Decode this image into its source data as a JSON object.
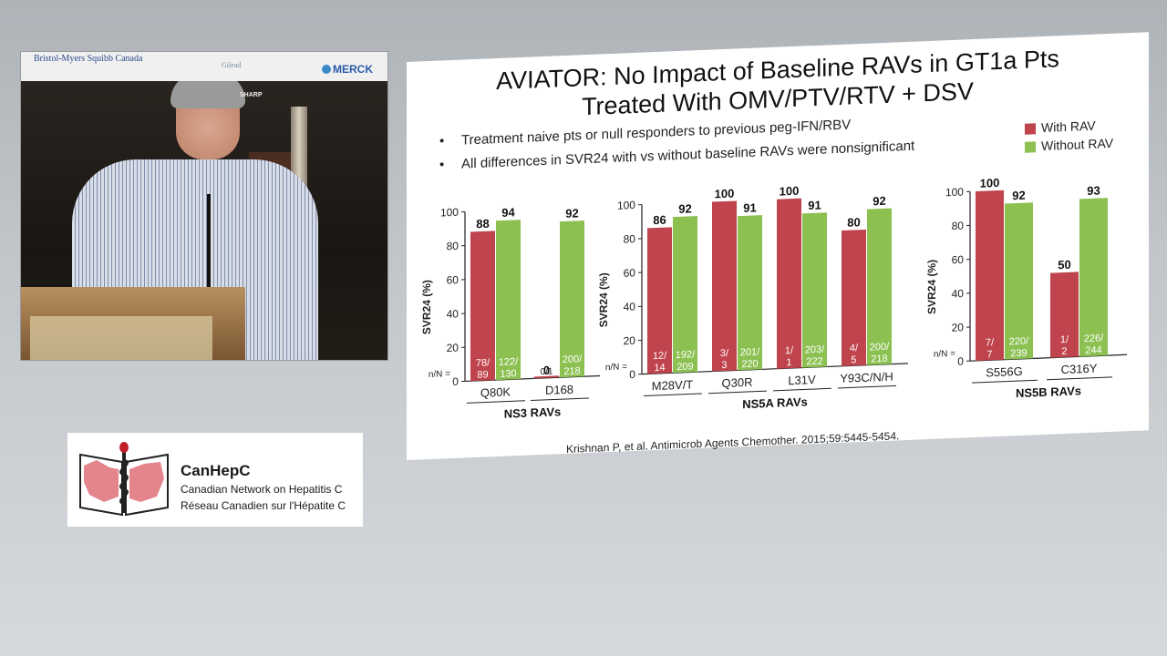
{
  "video": {
    "sponsors": [
      "Bristol-Myers Squibb Canada",
      "Gilead",
      "MERCK",
      "SHARP"
    ]
  },
  "logo": {
    "title": "CanHepC",
    "line1": "Canadian Network on Hepatitis C",
    "line2": "Réseau Canadien sur l'Hépatite C"
  },
  "slide": {
    "title_line1": "AVIATOR: No Impact of Baseline RAVs in GT1a Pts",
    "title_line2": "Treated With OMV/PTV/RTV + DSV",
    "bullets": [
      "Treatment naive pts or null responders to previous peg-IFN/RBV",
      "All differences in SVR24 with vs without baseline RAVs were nonsignificant"
    ],
    "legend": [
      {
        "label": "With RAV",
        "color": "#c0444d"
      },
      {
        "label": "Without RAV",
        "color": "#8cc152"
      }
    ],
    "citation": "Krishnan P, et al. Antimicrob Agents Chemother. 2015;59:5445-5454."
  },
  "chart_data": [
    {
      "type": "bar",
      "ylabel": "SVR24 (%)",
      "xlabel": "NS3 RAVs",
      "ylim": [
        0,
        100
      ],
      "yticks": [
        0,
        20,
        40,
        60,
        80,
        100
      ],
      "nlabel": "n/N =",
      "categories": [
        "Q80K",
        "D168"
      ],
      "series": [
        {
          "name": "With RAV",
          "color": "#c0444d",
          "values": [
            88,
            0
          ],
          "labels": [
            "88",
            "0"
          ],
          "n": [
            [
              "78/",
              "89"
            ],
            [
              "0/1"
            ]
          ]
        },
        {
          "name": "Without RAV",
          "color": "#8cc152",
          "values": [
            94,
            92
          ],
          "labels": [
            "94",
            "92"
          ],
          "n": [
            [
              "122/",
              "130"
            ],
            [
              "200/",
              "218"
            ]
          ]
        }
      ]
    },
    {
      "type": "bar",
      "ylabel": "SVR24 (%)",
      "xlabel": "NS5A RAVs",
      "ylim": [
        0,
        100
      ],
      "yticks": [
        0,
        20,
        40,
        60,
        80,
        100
      ],
      "nlabel": "n/N =",
      "categories": [
        "M28V/T",
        "Q30R",
        "L31V",
        "Y93C/N/H"
      ],
      "series": [
        {
          "name": "With RAV",
          "color": "#c0444d",
          "values": [
            86,
            100,
            100,
            80
          ],
          "labels": [
            "86",
            "100",
            "100",
            "80"
          ],
          "n": [
            [
              "12/",
              "14"
            ],
            [
              "3/",
              "3"
            ],
            [
              "1/",
              "1"
            ],
            [
              "4/",
              "5"
            ]
          ]
        },
        {
          "name": "Without RAV",
          "color": "#8cc152",
          "values": [
            92,
            91,
            91,
            92
          ],
          "labels": [
            "92",
            "91",
            "91",
            "92"
          ],
          "n": [
            [
              "192/",
              "209"
            ],
            [
              "201/",
              "220"
            ],
            [
              "203/",
              "222"
            ],
            [
              "200/",
              "218"
            ]
          ]
        }
      ]
    },
    {
      "type": "bar",
      "ylabel": "SVR24 (%)",
      "xlabel": "NS5B RAVs",
      "ylim": [
        0,
        100
      ],
      "yticks": [
        0,
        20,
        40,
        60,
        80,
        100
      ],
      "nlabel": "n/N =",
      "categories": [
        "S556G",
        "C316Y"
      ],
      "series": [
        {
          "name": "With RAV",
          "color": "#c0444d",
          "values": [
            100,
            50
          ],
          "labels": [
            "100",
            "50"
          ],
          "n": [
            [
              "7/",
              "7"
            ],
            [
              "1/",
              "2"
            ]
          ]
        },
        {
          "name": "Without RAV",
          "color": "#8cc152",
          "values": [
            92,
            93
          ],
          "labels": [
            "92",
            "93"
          ],
          "n": [
            [
              "220/",
              "239"
            ],
            [
              "226/",
              "244"
            ]
          ]
        }
      ]
    }
  ]
}
